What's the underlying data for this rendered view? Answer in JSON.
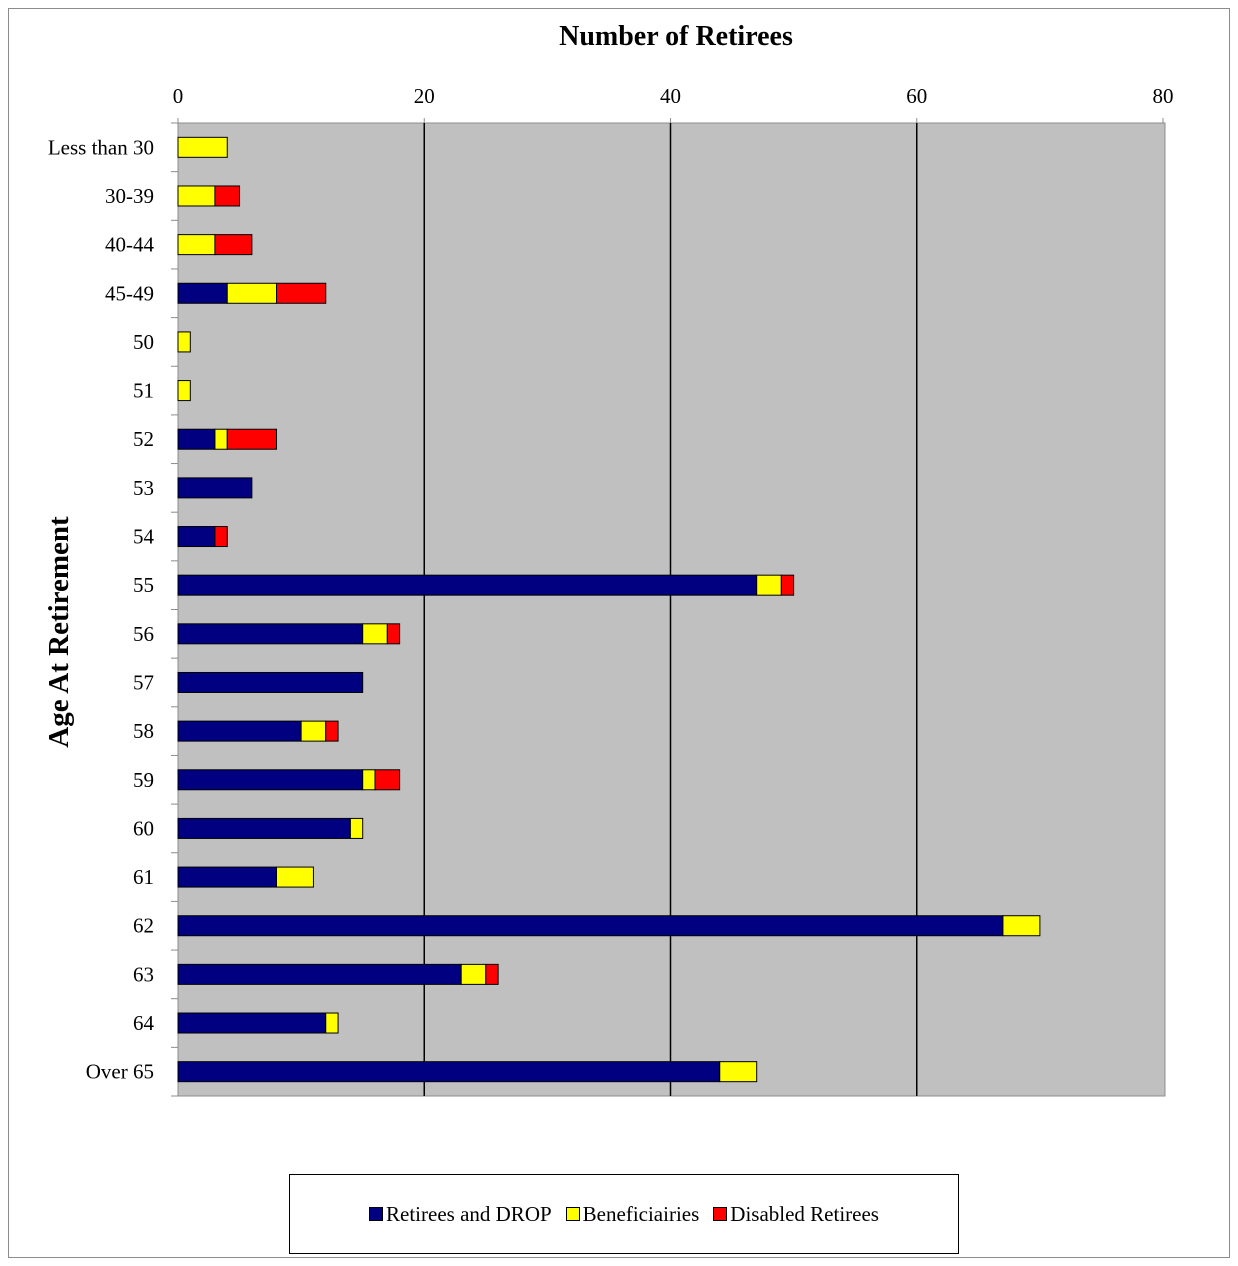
{
  "chart_data": {
    "type": "bar",
    "orientation": "horizontal",
    "stacked": true,
    "title": "Number of Retirees",
    "xlabel": "Number of Retirees",
    "ylabel": "Age  At Retirement",
    "xlim": [
      0,
      80
    ],
    "xticks": [
      "0",
      "20",
      "40",
      "60",
      "80"
    ],
    "grid": true,
    "legend_position": "bottom",
    "categories": [
      "Less than 30",
      "30-39",
      "40-44",
      "45-49",
      "50",
      "51",
      "52",
      "53",
      "54",
      "55",
      "56",
      "57",
      "58",
      "59",
      "60",
      "61",
      "62",
      "63",
      "64",
      "Over 65"
    ],
    "series": [
      {
        "name": "Retirees and DROP",
        "color": "#000080",
        "values": [
          0,
          0,
          0,
          4,
          0,
          0,
          3,
          6,
          3,
          47,
          15,
          15,
          10,
          15,
          14,
          8,
          67,
          23,
          12,
          44
        ]
      },
      {
        "name": "Beneficiairies",
        "color": "#ffff00",
        "values": [
          4,
          3,
          3,
          4,
          1,
          1,
          1,
          0,
          0,
          2,
          2,
          0,
          2,
          1,
          1,
          3,
          3,
          2,
          1,
          3
        ]
      },
      {
        "name": "Disabled Retirees",
        "color": "#ff0000",
        "values": [
          0,
          2,
          3,
          4,
          0,
          0,
          4,
          0,
          1,
          1,
          1,
          0,
          1,
          2,
          0,
          0,
          0,
          1,
          0,
          0
        ]
      }
    ],
    "plot_background": "#c0c0c0"
  }
}
